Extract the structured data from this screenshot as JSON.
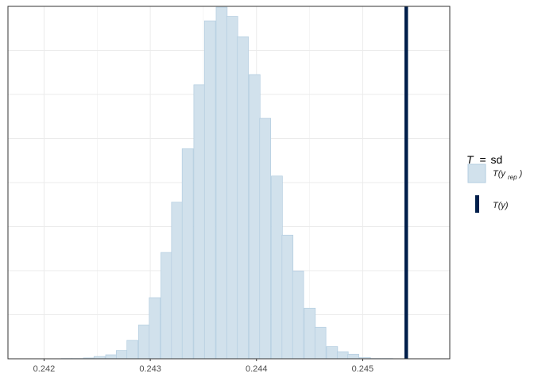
{
  "chart_data": {
    "type": "bar",
    "title": "",
    "xlabel": "",
    "ylabel": "",
    "bin_width": 0.000104,
    "bins": [
      {
        "x0": 0.24216,
        "count": 1
      },
      {
        "x0": 0.24226,
        "count": 1
      },
      {
        "x0": 0.24237,
        "count": 3
      },
      {
        "x0": 0.24247,
        "count": 8
      },
      {
        "x0": 0.24258,
        "count": 14
      },
      {
        "x0": 0.24268,
        "count": 29
      },
      {
        "x0": 0.24278,
        "count": 65
      },
      {
        "x0": 0.24289,
        "count": 119
      },
      {
        "x0": 0.24299,
        "count": 215
      },
      {
        "x0": 0.2431,
        "count": 374
      },
      {
        "x0": 0.2432,
        "count": 551
      },
      {
        "x0": 0.2433,
        "count": 739
      },
      {
        "x0": 0.24341,
        "count": 964
      },
      {
        "x0": 0.24351,
        "count": 1189
      },
      {
        "x0": 0.24362,
        "count": 1237
      },
      {
        "x0": 0.24372,
        "count": 1205
      },
      {
        "x0": 0.24382,
        "count": 1133
      },
      {
        "x0": 0.24393,
        "count": 1000
      },
      {
        "x0": 0.24403,
        "count": 846
      },
      {
        "x0": 0.24414,
        "count": 643
      },
      {
        "x0": 0.24424,
        "count": 435
      },
      {
        "x0": 0.24434,
        "count": 309
      },
      {
        "x0": 0.24445,
        "count": 178
      },
      {
        "x0": 0.24455,
        "count": 111
      },
      {
        "x0": 0.24466,
        "count": 43
      },
      {
        "x0": 0.24476,
        "count": 25
      },
      {
        "x0": 0.24486,
        "count": 16
      },
      {
        "x0": 0.24497,
        "count": 4
      },
      {
        "x0": 0.24507,
        "count": 1
      },
      {
        "x0": 0.24518,
        "count": 1
      }
    ],
    "observed_value": 0.24541,
    "xlim": [
      0.24166,
      0.24582
    ],
    "ylim": [
      0,
      1240
    ],
    "x_ticks": [
      0.242,
      0.243,
      0.244,
      0.245
    ],
    "x_tick_labels": [
      "0.242",
      "0.243",
      "0.244",
      "0.245"
    ],
    "y_gridlines": [
      155,
      310,
      465,
      620,
      775,
      930,
      1085,
      1240
    ],
    "grid": true,
    "legend_position": "right",
    "legend": {
      "title_T": "T",
      "title_eq": "=",
      "title_stat": "sd",
      "items": [
        {
          "key": "yrep",
          "label_main": "T(y",
          "label_sub": "rep",
          "label_close": ")"
        },
        {
          "key": "y",
          "label_main": "T(y)"
        }
      ]
    },
    "colors": {
      "bar_fill": "#d1e1ec",
      "bar_stroke": "#b3cde0",
      "observed_line": "#011f4b",
      "grid": "#ebebeb",
      "panel_border": "#333333",
      "tick_text": "#4d4d4d"
    }
  }
}
